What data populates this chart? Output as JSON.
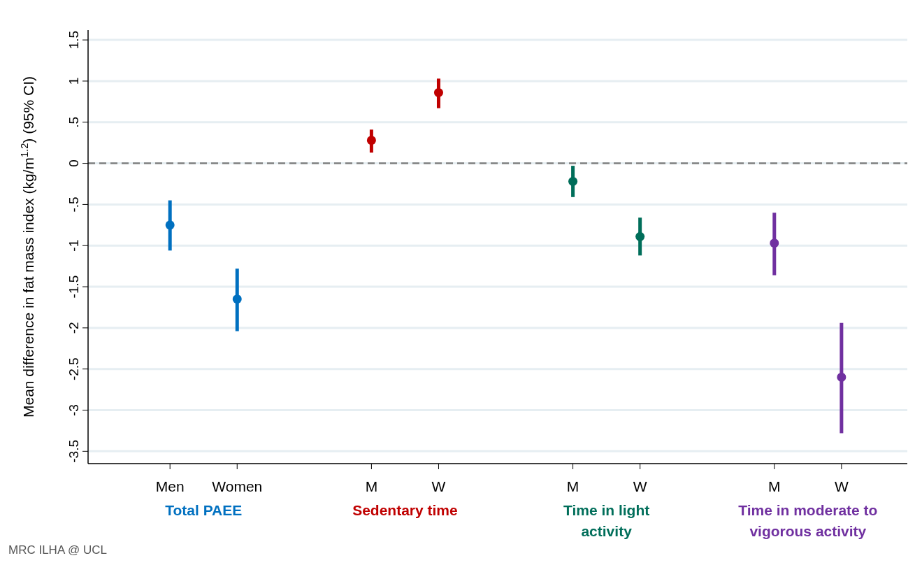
{
  "chart_data": {
    "type": "scatter",
    "ylabel": "Mean difference in fat mass index (kg/m$^{1.2}$) (95% CI)",
    "categories": [
      "Men",
      "Women",
      "M",
      "W",
      "M",
      "W",
      "M",
      "W"
    ],
    "series": [
      {
        "name": "Total PAEE",
        "color": "#0070c0",
        "values": [
          -0.75,
          -1.65,
          null,
          null,
          null,
          null,
          null,
          null
        ],
        "errors": [
          [
            -1.06,
            -0.45
          ],
          [
            -2.04,
            -1.28
          ],
          null,
          null,
          null,
          null,
          null,
          null
        ]
      },
      {
        "name": "Sedentary time",
        "color": "#c00000",
        "values": [
          null,
          null,
          0.28,
          0.86,
          null,
          null,
          null,
          null
        ],
        "errors": [
          null,
          null,
          [
            0.13,
            0.41
          ],
          [
            0.67,
            1.03
          ],
          null,
          null,
          null,
          null
        ]
      },
      {
        "name": "Time in light activity",
        "color": "#006e5a",
        "values": [
          null,
          null,
          null,
          null,
          -0.22,
          -0.89,
          null,
          null
        ],
        "errors": [
          null,
          null,
          null,
          null,
          [
            -0.41,
            -0.03
          ],
          [
            -1.12,
            -0.66
          ],
          null,
          null
        ]
      },
      {
        "name": "Time in moderate to vigorous activity",
        "color": "#7030a0",
        "values": [
          null,
          null,
          null,
          null,
          null,
          null,
          -0.97,
          -2.6
        ],
        "errors": [
          null,
          null,
          null,
          null,
          null,
          null,
          [
            -1.36,
            -0.6
          ],
          [
            -3.28,
            -1.94
          ]
        ]
      }
    ],
    "ylim": [
      -3.65,
      1.62
    ],
    "yticks": [
      1.5,
      1,
      {
        "value": 0.5,
        "label": ".5"
      },
      0,
      {
        "value": -0.5,
        "label": "-.5"
      },
      -1,
      -1.5,
      -2,
      -2.5,
      -3,
      -3.5
    ],
    "grid": "y",
    "marker": "circle",
    "ref_lines": [
      {
        "axis": "y",
        "value": 0,
        "color": "#808080",
        "line_style": "dashed"
      }
    ],
    "annotations": [
      "MRC ILHA @ UCL"
    ]
  }
}
